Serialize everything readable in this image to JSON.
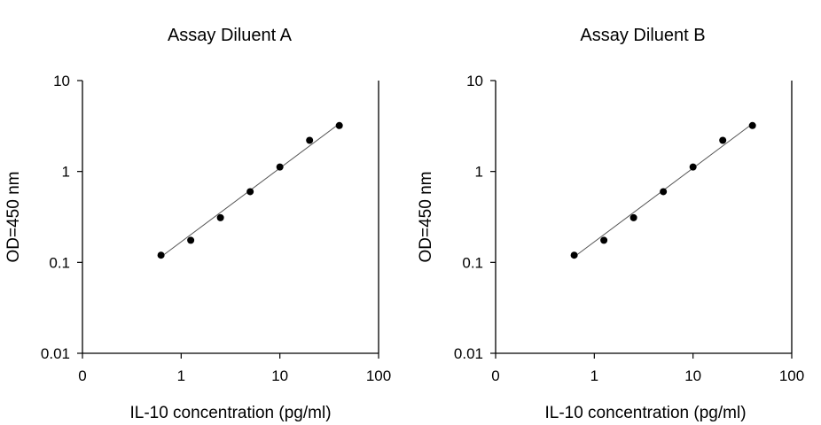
{
  "chart_data": [
    {
      "type": "scatter",
      "title": "Assay Diluent A",
      "xlabel": "IL-10 concentration (pg/ml)",
      "ylabel": "OD=450 nm",
      "x_scale": "log",
      "y_scale": "log",
      "xlim": [
        0.1,
        100
      ],
      "ylim": [
        0.01,
        10
      ],
      "x_ticks": [
        {
          "value": 0.1,
          "label": "0"
        },
        {
          "value": 1,
          "label": "1"
        },
        {
          "value": 10,
          "label": "10"
        },
        {
          "value": 100,
          "label": "100"
        }
      ],
      "y_ticks": [
        {
          "value": 0.01,
          "label": "0.01"
        },
        {
          "value": 0.1,
          "label": "0.1"
        },
        {
          "value": 1,
          "label": "1"
        },
        {
          "value": 10,
          "label": "10"
        }
      ],
      "grid": false,
      "x": [
        0.625,
        1.25,
        2.5,
        5,
        10,
        20,
        40
      ],
      "y": [
        0.12,
        0.175,
        0.31,
        0.6,
        1.12,
        2.2,
        3.2
      ],
      "fit_line": {
        "x": [
          0.625,
          40
        ],
        "y": [
          0.115,
          3.35
        ]
      },
      "point_color": "#000000",
      "line_color": "#555555"
    },
    {
      "type": "scatter",
      "title": "Assay Diluent B",
      "xlabel": "IL-10 concentration (pg/ml)",
      "ylabel": "OD=450 nm",
      "x_scale": "log",
      "y_scale": "log",
      "xlim": [
        0.1,
        100
      ],
      "ylim": [
        0.01,
        10
      ],
      "x_ticks": [
        {
          "value": 0.1,
          "label": "0"
        },
        {
          "value": 1,
          "label": "1"
        },
        {
          "value": 10,
          "label": "10"
        },
        {
          "value": 100,
          "label": "100"
        }
      ],
      "y_ticks": [
        {
          "value": 0.01,
          "label": "0.01"
        },
        {
          "value": 0.1,
          "label": "0.1"
        },
        {
          "value": 1,
          "label": "1"
        },
        {
          "value": 10,
          "label": "10"
        }
      ],
      "grid": false,
      "x": [
        0.625,
        1.25,
        2.5,
        5,
        10,
        20,
        40
      ],
      "y": [
        0.12,
        0.175,
        0.31,
        0.6,
        1.12,
        2.2,
        3.2
      ],
      "fit_line": {
        "x": [
          0.625,
          40
        ],
        "y": [
          0.115,
          3.35
        ]
      },
      "point_color": "#000000",
      "line_color": "#555555"
    }
  ]
}
